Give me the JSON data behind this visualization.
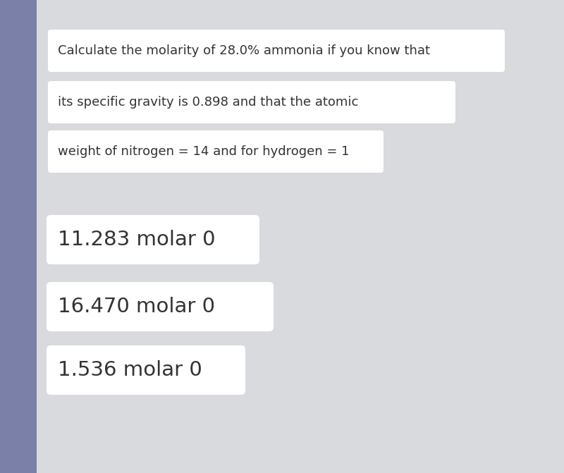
{
  "fig_width": 8.0,
  "fig_height": 6.71,
  "background_color": "#7b80a8",
  "main_panel_color": "#d8dade",
  "box_color": "#ffffff",
  "text_color": "#333333",
  "question_lines": [
    "Calculate the molarity of 28.0% ammonia if you know that",
    "its specific gravity is 0.898 and that the atomic",
    "weight of nitrogen = 14 and for hydrogen = 1"
  ],
  "answer_options": [
    "11.283 molar 0",
    "16.470 molar 0",
    "1.536 molar 0"
  ],
  "question_fontsize": 13.0,
  "answer_fontsize": 21.0
}
